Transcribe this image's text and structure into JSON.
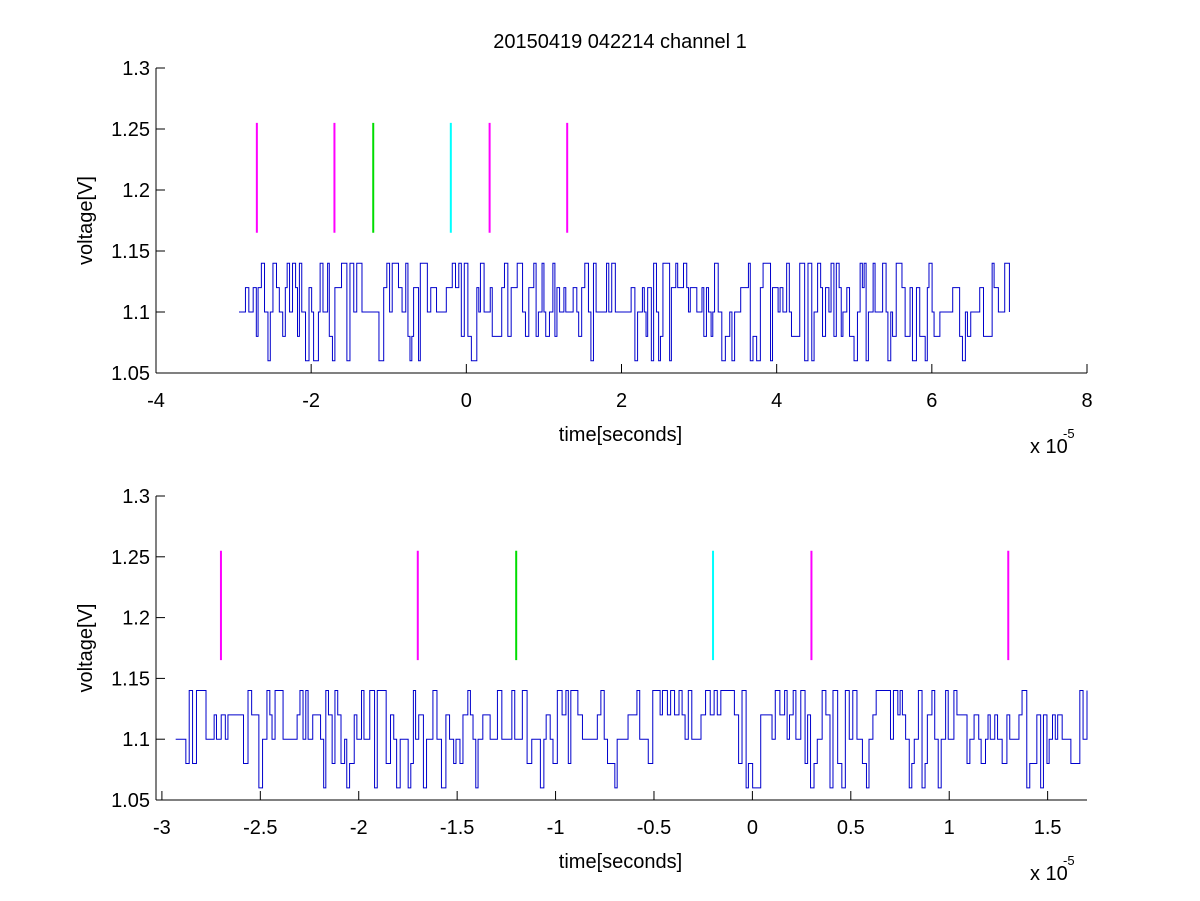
{
  "figure": {
    "title": "20150419 042214 channel 1",
    "background": "#ffffff"
  },
  "colors": {
    "signal": "#0000cc",
    "axis": "#000000",
    "magenta": "#ff00ff",
    "green": "#00dd00",
    "cyan": "#00ffff"
  },
  "chart_data": [
    {
      "type": "line",
      "title": "20150419 042214 channel 1",
      "xlabel": "time[seconds]",
      "ylabel": "voltage[V]",
      "x_exponent_label": "x 10",
      "x_exponent_power": "-5",
      "xlim": [
        -4,
        8
      ],
      "ylim": [
        1.05,
        1.3
      ],
      "xticks": [
        -4,
        -2,
        0,
        2,
        4,
        6,
        8
      ],
      "xtick_labels": [
        "-4",
        "-2",
        "0",
        "2",
        "4",
        "6",
        "8"
      ],
      "yticks": [
        1.05,
        1.1,
        1.15,
        1.2,
        1.25,
        1.3
      ],
      "ytick_labels": [
        "1.05",
        "1.1",
        "1.15",
        "1.2",
        "1.25",
        "1.3"
      ],
      "grid": false,
      "signal": {
        "x_start": -2.93,
        "x_end": 7.0,
        "baseline": 1.1,
        "levels": [
          1.06,
          1.08,
          1.1,
          1.12,
          1.14
        ]
      },
      "markers": [
        {
          "x": -2.7,
          "y0": 1.165,
          "y1": 1.255,
          "color": "magenta"
        },
        {
          "x": -1.7,
          "y0": 1.165,
          "y1": 1.255,
          "color": "magenta"
        },
        {
          "x": -1.2,
          "y0": 1.165,
          "y1": 1.255,
          "color": "green"
        },
        {
          "x": -0.2,
          "y0": 1.165,
          "y1": 1.255,
          "color": "cyan"
        },
        {
          "x": 0.3,
          "y0": 1.165,
          "y1": 1.255,
          "color": "magenta"
        },
        {
          "x": 1.3,
          "y0": 1.165,
          "y1": 1.255,
          "color": "magenta"
        }
      ]
    },
    {
      "type": "line",
      "title": "",
      "xlabel": "time[seconds]",
      "ylabel": "voltage[V]",
      "x_exponent_label": "x 10",
      "x_exponent_power": "-5",
      "xlim": [
        -3.03,
        1.7
      ],
      "ylim": [
        1.05,
        1.3
      ],
      "xticks": [
        -3,
        -2.5,
        -2,
        -1.5,
        -1,
        -0.5,
        0,
        0.5,
        1,
        1.5
      ],
      "xtick_labels": [
        "-3",
        "-2.5",
        "-2",
        "-1.5",
        "-1",
        "-0.5",
        "0",
        "0.5",
        "1",
        "1.5"
      ],
      "yticks": [
        1.05,
        1.1,
        1.15,
        1.2,
        1.25,
        1.3
      ],
      "ytick_labels": [
        "1.05",
        "1.1",
        "1.15",
        "1.2",
        "1.25",
        "1.3"
      ],
      "grid": false,
      "signal": {
        "x_start": -2.93,
        "x_end": 1.7,
        "baseline": 1.1,
        "levels": [
          1.06,
          1.08,
          1.1,
          1.12,
          1.14
        ]
      },
      "markers": [
        {
          "x": -2.7,
          "y0": 1.165,
          "y1": 1.255,
          "color": "magenta"
        },
        {
          "x": -1.7,
          "y0": 1.165,
          "y1": 1.255,
          "color": "magenta"
        },
        {
          "x": -1.2,
          "y0": 1.165,
          "y1": 1.255,
          "color": "green"
        },
        {
          "x": -0.2,
          "y0": 1.165,
          "y1": 1.255,
          "color": "cyan"
        },
        {
          "x": 0.3,
          "y0": 1.165,
          "y1": 1.255,
          "color": "magenta"
        },
        {
          "x": 1.3,
          "y0": 1.165,
          "y1": 1.255,
          "color": "magenta"
        }
      ]
    }
  ]
}
